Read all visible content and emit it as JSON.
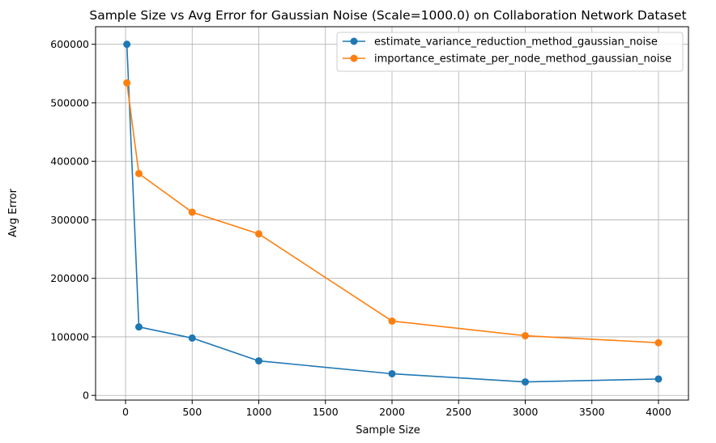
{
  "chart_data": {
    "type": "line",
    "title": "Sample Size vs Avg Error for Gaussian Noise (Scale=1000.0) on Collaboration Network Dataset",
    "xlabel": "Sample Size",
    "ylabel": "Avg Error",
    "xlim": [
      -225,
      4225
    ],
    "ylim": [
      -8000,
      630000
    ],
    "xticks": [
      0,
      500,
      1000,
      1500,
      2000,
      2500,
      3000,
      3500,
      4000
    ],
    "yticks": [
      0,
      100000,
      200000,
      300000,
      400000,
      500000,
      600000
    ],
    "grid": true,
    "legend_position": "top-right",
    "x": [
      10,
      100,
      500,
      1000,
      2000,
      3000,
      4000
    ],
    "series": [
      {
        "name": "estimate_variance_reduction_method_gaussian_noise",
        "color": "#1f77b4",
        "values": [
          600000,
          117000,
          98000,
          59000,
          37000,
          23000,
          28000
        ]
      },
      {
        "name": "importance_estimate_per_node_method_gaussian_noise",
        "color": "#ff7f0e",
        "values": [
          534000,
          379000,
          313000,
          276000,
          127000,
          102000,
          90000
        ]
      }
    ]
  }
}
